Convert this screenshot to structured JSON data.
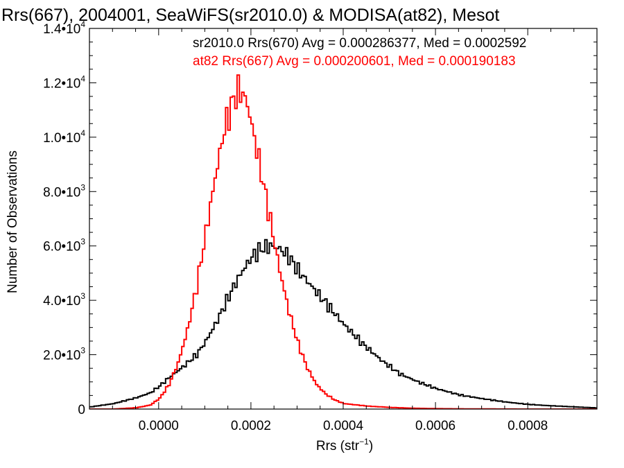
{
  "chart_data": {
    "type": "histogram",
    "title": "Rrs(667), 2004001, SeaWiFS(sr2010.0) & MODISA(at82), Mesot",
    "xlabel": "Rrs (str",
    "xlabel_exponent": "−1",
    "xlabel_suffix": ")",
    "ylabel": "Number of Observations",
    "xlim": [
      -0.00015,
      0.00095
    ],
    "ylim": [
      0,
      14000
    ],
    "x_ticks": [
      {
        "value": 0.0,
        "label": "0.0000"
      },
      {
        "value": 0.0002,
        "label": "0.0002"
      },
      {
        "value": 0.0004,
        "label": "0.0004"
      },
      {
        "value": 0.0006,
        "label": "0.0006"
      },
      {
        "value": 0.0008,
        "label": "0.0008"
      }
    ],
    "y_ticks": [
      {
        "value": 0,
        "mantissa": "0",
        "exp": ""
      },
      {
        "value": 2000,
        "mantissa": "2.0•10",
        "exp": "3"
      },
      {
        "value": 4000,
        "mantissa": "4.0•10",
        "exp": "3"
      },
      {
        "value": 6000,
        "mantissa": "6.0•10",
        "exp": "3"
      },
      {
        "value": 8000,
        "mantissa": "8.0•10",
        "exp": "3"
      },
      {
        "value": 10000,
        "mantissa": "1.0•10",
        "exp": "4"
      },
      {
        "value": 12000,
        "mantissa": "1.2•10",
        "exp": "4"
      },
      {
        "value": 14000,
        "mantissa": "1.4•10",
        "exp": "4"
      }
    ],
    "series": [
      {
        "name": "sr2010.0 Rrs(670) Avg = 0.000286377, Med = 0.0002592",
        "color": "#000000",
        "x": [
          -0.00015,
          -0.0001,
          -5e-05,
          -2e-05,
          0.0,
          2e-05,
          5e-05,
          8e-05,
          0.0001,
          0.00012,
          0.00014,
          0.00016,
          0.00018,
          0.0002,
          0.00022,
          0.00024,
          0.00026,
          0.00028,
          0.0003,
          0.00033,
          0.00036,
          0.0004,
          0.00044,
          0.00048,
          0.00052,
          0.00056,
          0.0006,
          0.00065,
          0.0007,
          0.00075,
          0.0008,
          0.00085,
          0.0009,
          0.00095
        ],
        "values": [
          80,
          200,
          420,
          600,
          850,
          1150,
          1550,
          2000,
          2500,
          3100,
          3800,
          4500,
          5100,
          5600,
          5900,
          6000,
          5900,
          5600,
          5100,
          4500,
          3900,
          3100,
          2400,
          1800,
          1300,
          1000,
          750,
          520,
          380,
          260,
          170,
          120,
          80,
          40
        ]
      },
      {
        "name": "at82 Rrs(667) Avg = 0.000200601, Med = 0.000190183",
        "color": "#ff0000",
        "x": [
          -0.00015,
          -0.0001,
          -5e-05,
          -2e-05,
          0.0,
          2e-05,
          4e-05,
          6e-05,
          8e-05,
          0.0001,
          0.00012,
          0.00014,
          0.00016,
          0.00017,
          0.00018,
          0.00019,
          0.0002,
          0.00022,
          0.00024,
          0.00026,
          0.00028,
          0.0003,
          0.00032,
          0.00034,
          0.00036,
          0.00038,
          0.0004,
          0.00045,
          0.0005,
          0.00055,
          0.0006,
          0.0007,
          0.0008,
          0.00095
        ],
        "values": [
          0,
          0,
          50,
          150,
          400,
          900,
          1700,
          2900,
          4500,
          6500,
          8500,
          10300,
          11400,
          11700,
          11600,
          11200,
          10400,
          8700,
          6900,
          5100,
          3600,
          2400,
          1500,
          900,
          550,
          330,
          200,
          110,
          60,
          30,
          15,
          5,
          0,
          0
        ]
      }
    ],
    "grid": false,
    "legend_position": "top-right"
  }
}
